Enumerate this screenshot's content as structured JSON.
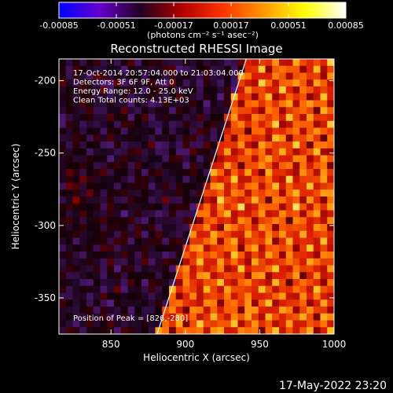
{
  "colorbar": {
    "tick_labels": [
      "-0.00085",
      "-0.00051",
      "-0.00017",
      "0.00017",
      "0.00051",
      "0.00085"
    ],
    "tick_values": [
      -0.00085,
      -0.00051,
      -0.00017,
      0.00017,
      0.00051,
      0.00085
    ],
    "range": [
      -0.00085,
      0.00085
    ],
    "unit_label": "(photons cm⁻² s⁻¹ asec⁻²)",
    "colors": [
      "#0000ff",
      "#6600cc",
      "#220022",
      "#b00000",
      "#ff3300",
      "#ff9900",
      "#ffff00",
      "#ffffff"
    ]
  },
  "chart_data": {
    "type": "heatmap",
    "title": "Reconstructed RHESSI Image",
    "xlabel": "Heliocentric X (arcsec)",
    "ylabel": "Heliocentric Y (arcsec)",
    "xlim": [
      815,
      1000
    ],
    "ylim": [
      -375,
      -185
    ],
    "x_ticks": [
      850,
      900,
      950,
      1000
    ],
    "y_ticks": [
      -200,
      -250,
      -300,
      -350
    ],
    "limb_line": [
      [
        881,
        -375
      ],
      [
        941,
        -185
      ]
    ],
    "annotations": [
      "17-Oct-2014 20:57:04.000 to 21:03:04.000",
      "Detectors: 3F 6F 9F, Att 0",
      "Energy Range: 12.0 - 25.0 keV",
      "Clean    Total counts: 4.13E+03"
    ],
    "peak_label": "Position of Peak = [826,-280]",
    "peak": [
      826,
      -280
    ],
    "grid": false
  },
  "footer": {
    "timestamp": "17-May-2022 23:20"
  }
}
